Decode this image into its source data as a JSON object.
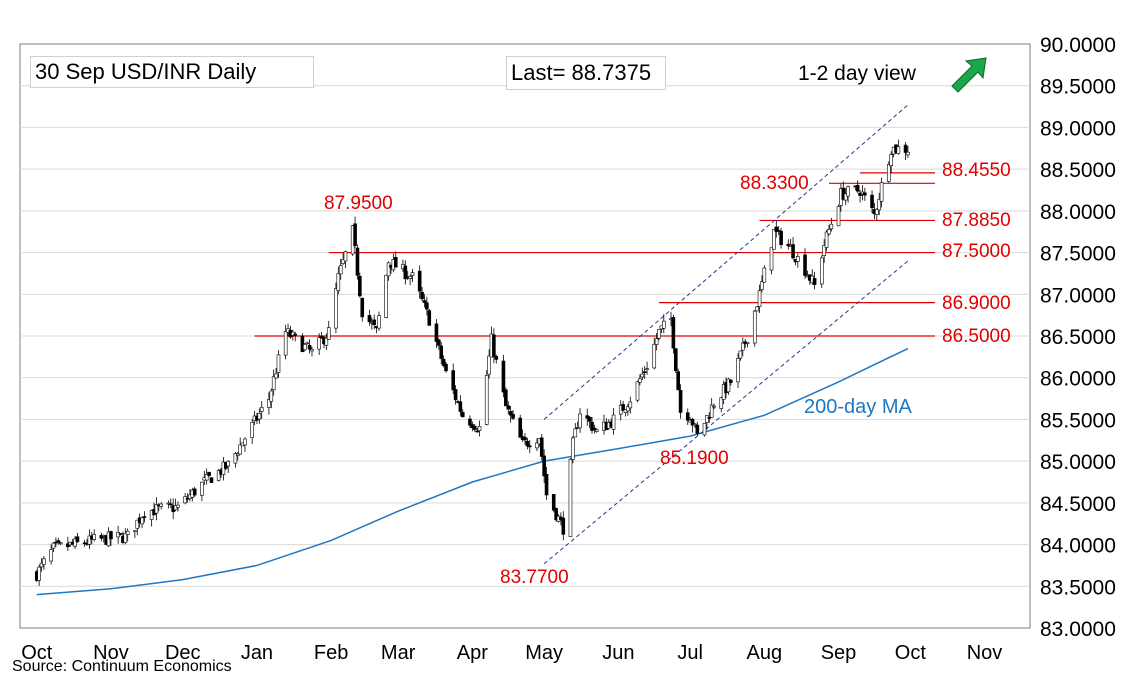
{
  "header": {
    "title": "30 Sep  USD/INR  Daily",
    "last": "Last= 88.7375",
    "view": "1-2 day view"
  },
  "footer": {
    "source": "Source: Continuum Economics"
  },
  "colors": {
    "level": "#e00000",
    "ma": "#1f77c4",
    "channel": "#1f3b8c",
    "arrow": "#1aa84a",
    "up_candle": "#ffffff",
    "down_candle": "#000000"
  },
  "chart_data": {
    "type": "candlestick",
    "ylim": [
      83.0,
      90.0
    ],
    "y_ticks": [
      "83.0000",
      "83.5000",
      "84.0000",
      "84.5000",
      "85.0000",
      "85.5000",
      "86.0000",
      "86.5000",
      "87.0000",
      "87.5000",
      "88.0000",
      "88.5000",
      "89.0000",
      "89.5000",
      "90.0000"
    ],
    "x_labels": [
      "Oct",
      "Nov",
      "Dec",
      "Jan",
      "Feb",
      "Mar",
      "Apr",
      "May",
      "Jun",
      "Jul",
      "Aug",
      "Sep",
      "Oct",
      "Nov"
    ],
    "levels": [
      {
        "label": "88.4550",
        "value": 88.455,
        "from": "2025-09-10"
      },
      {
        "label": "88.3300",
        "value": 88.33,
        "from": "2025-08-28"
      },
      {
        "label": "87.8850",
        "value": 87.885,
        "from": "2025-07-30"
      },
      {
        "label": "87.5000",
        "value": 87.5,
        "from": "2025-01-31"
      },
      {
        "label": "86.9000",
        "value": 86.9,
        "from": "2025-06-18"
      },
      {
        "label": "86.5000",
        "value": 86.5,
        "from": "2024-12-31"
      }
    ],
    "annotations": [
      {
        "label": "87.9500",
        "value": 87.95
      },
      {
        "label": "83.7700",
        "value": 83.77
      },
      {
        "label": "85.1900",
        "value": 85.19
      }
    ],
    "ma_label": "200-day MA",
    "ma_200": [
      {
        "date": "2024-10-01",
        "value": 83.4
      },
      {
        "date": "2024-11-01",
        "value": 83.47
      },
      {
        "date": "2024-12-01",
        "value": 83.58
      },
      {
        "date": "2025-01-01",
        "value": 83.75
      },
      {
        "date": "2025-02-01",
        "value": 84.05
      },
      {
        "date": "2025-03-01",
        "value": 84.4
      },
      {
        "date": "2025-04-01",
        "value": 84.75
      },
      {
        "date": "2025-05-01",
        "value": 85.0
      },
      {
        "date": "2025-06-01",
        "value": 85.15
      },
      {
        "date": "2025-07-01",
        "value": 85.3
      },
      {
        "date": "2025-08-01",
        "value": 85.55
      },
      {
        "date": "2025-09-01",
        "value": 85.95
      },
      {
        "date": "2025-09-30",
        "value": 86.35
      }
    ],
    "channel": {
      "lower": [
        {
          "date": "2025-05-01",
          "value": 83.77
        },
        {
          "date": "2025-09-30",
          "value": 87.4
        }
      ],
      "upper": [
        {
          "date": "2025-05-01",
          "value": 85.5
        },
        {
          "date": "2025-09-30",
          "value": 89.27
        }
      ]
    },
    "ohlc": {
      "start": "2024-10-01",
      "anchors": [
        [
          "2024-10-01",
          83.65
        ],
        [
          "2024-10-08",
          83.95
        ],
        [
          "2024-10-25",
          84.05
        ],
        [
          "2024-11-08",
          84.1
        ],
        [
          "2024-11-15",
          84.4
        ],
        [
          "2024-11-29",
          84.45
        ],
        [
          "2024-12-10",
          84.75
        ],
        [
          "2024-12-20",
          84.95
        ],
        [
          "2025-01-06",
          85.75
        ],
        [
          "2025-01-13",
          86.55
        ],
        [
          "2025-01-24",
          86.3
        ],
        [
          "2025-01-31",
          86.55
        ],
        [
          "2025-02-04",
          87.2
        ],
        [
          "2025-02-10",
          87.75
        ],
        [
          "2025-02-14",
          86.8
        ],
        [
          "2025-02-20",
          86.55
        ],
        [
          "2025-02-25",
          87.4
        ],
        [
          "2025-03-07",
          87.2
        ],
        [
          "2025-03-14",
          86.7
        ],
        [
          "2025-03-21",
          86.05
        ],
        [
          "2025-03-28",
          85.55
        ],
        [
          "2025-04-04",
          85.4
        ],
        [
          "2025-04-09",
          86.45
        ],
        [
          "2025-04-15",
          85.65
        ],
        [
          "2025-04-22",
          85.2
        ],
        [
          "2025-04-29",
          85.3
        ],
        [
          "2025-05-02",
          84.6
        ],
        [
          "2025-05-09",
          84.2
        ],
        [
          "2025-05-13",
          85.2
        ],
        [
          "2025-05-16",
          85.6
        ],
        [
          "2025-05-23",
          85.35
        ],
        [
          "2025-05-30",
          85.5
        ],
        [
          "2025-06-06",
          85.75
        ],
        [
          "2025-06-13",
          86.15
        ],
        [
          "2025-06-18",
          86.55
        ],
        [
          "2025-06-23",
          86.7
        ],
        [
          "2025-06-27",
          85.6
        ],
        [
          "2025-07-01",
          85.55
        ],
        [
          "2025-07-04",
          85.3
        ],
        [
          "2025-07-11",
          85.7
        ],
        [
          "2025-07-18",
          85.95
        ],
        [
          "2025-07-25",
          86.5
        ],
        [
          "2025-07-30",
          87.0
        ],
        [
          "2025-08-05",
          87.75
        ],
        [
          "2025-08-12",
          87.55
        ],
        [
          "2025-08-18",
          87.3
        ],
        [
          "2025-08-22",
          87.1
        ],
        [
          "2025-08-26",
          87.6
        ],
        [
          "2025-09-02",
          88.2
        ],
        [
          "2025-09-10",
          88.25
        ],
        [
          "2025-09-16",
          87.95
        ],
        [
          "2025-09-19",
          88.3
        ],
        [
          "2025-09-23",
          88.75
        ],
        [
          "2025-09-30",
          88.74
        ]
      ]
    }
  }
}
